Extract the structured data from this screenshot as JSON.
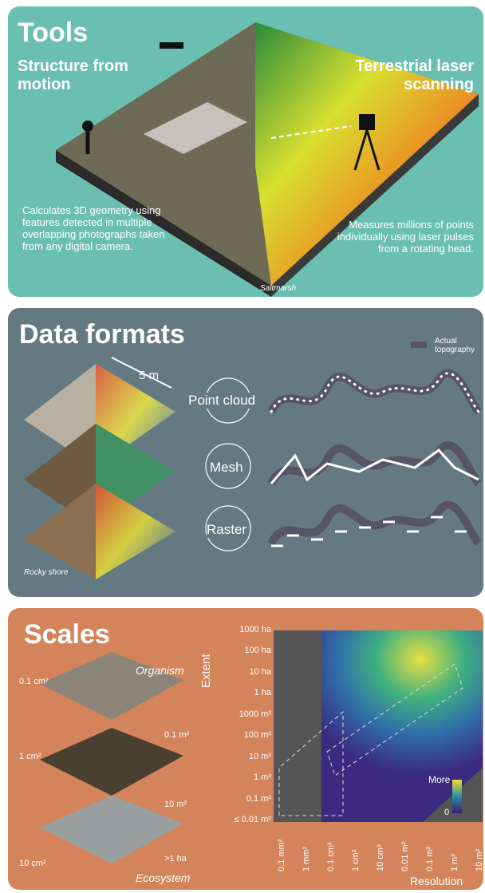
{
  "tools": {
    "title": "Tools",
    "left_heading": "Structure from motion",
    "right_heading": "Terrestrial laser scanning",
    "left_text": "Calculates 3D geometry using features detected in multiple overlapping photographs taken from any digital camera.",
    "right_text": "Measures millions of points individually using laser pulses from a rotating head.",
    "site": "Saltmarsh"
  },
  "formats": {
    "title": "Data formats",
    "scale": "5 m",
    "legend": "Actual topography",
    "types": [
      "Point cloud",
      "Mesh",
      "Raster"
    ],
    "site": "Rocky shore"
  },
  "scales": {
    "title": "Scales",
    "top_label": "Organism",
    "bottom_label": "Ecosystem",
    "resolution_labels": [
      "0.1 cm²",
      "1 cm²",
      "10 cm²"
    ],
    "extent_labels": [
      "0.1 m²",
      "10 m²",
      ">1 ha"
    ],
    "y_axis_title": "Extent",
    "x_axis_title": "Resolution",
    "y_ticks": [
      "1000 ha",
      "100 ha",
      "10 ha",
      "1 ha",
      "1000 m²",
      "100 m²",
      "10 m²",
      "1 m²",
      "0.1 m²",
      "≤ 0.01 m²"
    ],
    "x_ticks": [
      "0.1 mm²",
      "1 mm²",
      "0.1 cm²",
      "1 cm²",
      "10 cm²",
      "0.01 m²",
      "0.1 m²",
      "1 m²",
      "10 m²"
    ],
    "legend_high": "More",
    "legend_low": "0"
  }
}
